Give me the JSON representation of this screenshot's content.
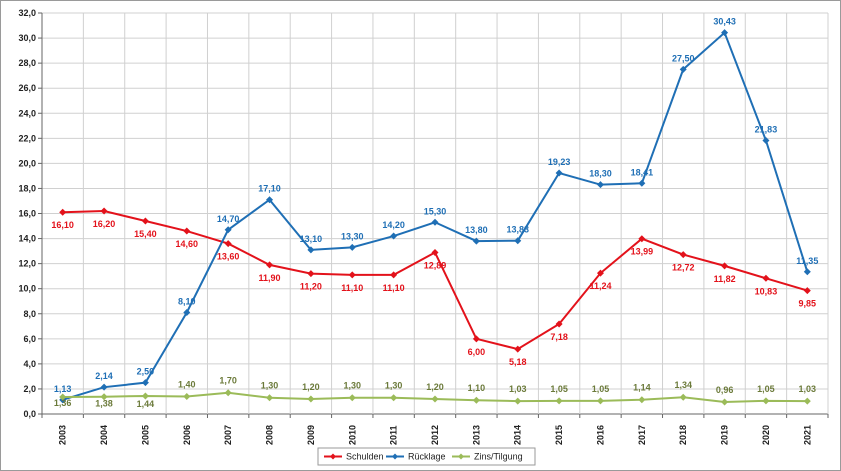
{
  "chart_data": {
    "type": "line",
    "title": "",
    "xlabel": "",
    "ylabel": "",
    "ylim": [
      0,
      32
    ],
    "y_ticks": [
      "0,0",
      "2,0",
      "4,0",
      "6,0",
      "8,0",
      "10,0",
      "12,0",
      "14,0",
      "16,0",
      "18,0",
      "20,0",
      "22,0",
      "24,0",
      "26,0",
      "28,0",
      "30,0",
      "32,0"
    ],
    "categories": [
      "2003",
      "2004",
      "2005",
      "2006",
      "2007",
      "2008",
      "2009",
      "2010",
      "2011",
      "2012",
      "2013",
      "2014",
      "2015",
      "2016",
      "2017",
      "2018",
      "2019",
      "2020",
      "2021"
    ],
    "grid": true,
    "legend_position": "bottom-right",
    "series": [
      {
        "name": "Schulden",
        "color": "#e3121b",
        "marker": "diamond",
        "values": [
          16.1,
          16.2,
          15.4,
          14.6,
          13.6,
          11.9,
          11.2,
          11.1,
          11.1,
          12.89,
          6.0,
          5.18,
          7.18,
          11.24,
          13.99,
          12.72,
          11.82,
          10.83,
          9.85
        ],
        "labels": [
          "16,10",
          "16,20",
          "15,40",
          "14,60",
          "13,60",
          "11,90",
          "11,20",
          "11,10",
          "11,10",
          "12,89",
          "6,00",
          "5,18",
          "7,18",
          "11,24",
          "13,99",
          "12,72",
          "11,82",
          "10,83",
          "9,85"
        ]
      },
      {
        "name": "Rücklage",
        "color": "#1f6fb5",
        "marker": "diamond",
        "values": [
          1.13,
          2.14,
          2.5,
          8.1,
          14.7,
          17.1,
          13.1,
          13.3,
          14.2,
          15.3,
          13.8,
          13.83,
          19.23,
          18.3,
          18.41,
          27.5,
          30.43,
          21.83,
          11.35
        ],
        "labels": [
          "1,13",
          "2,14",
          "2,50",
          "8,10",
          "14,70",
          "17,10",
          "13,10",
          "13,30",
          "14,20",
          "15,30",
          "13,80",
          "13,83",
          "19,23",
          "18,30",
          "18,41",
          "27,50",
          "30,43",
          "21,83",
          "11,35"
        ]
      },
      {
        "name": "Zins/Tilgung",
        "color": "#9bbb59",
        "marker": "diamond",
        "values": [
          1.36,
          1.38,
          1.44,
          1.4,
          1.7,
          1.3,
          1.2,
          1.3,
          1.3,
          1.2,
          1.1,
          1.03,
          1.05,
          1.05,
          1.14,
          1.34,
          0.96,
          1.05,
          1.03
        ],
        "labels": [
          "1,36",
          "1,38",
          "1,44",
          "1,40",
          "1,70",
          "1,30",
          "1,20",
          "1,30",
          "1,30",
          "1,20",
          "1,10",
          "1,03",
          "1,05",
          "1,05",
          "1,14",
          "1,34",
          "0,96",
          "1,05",
          "1,03"
        ]
      }
    ]
  }
}
